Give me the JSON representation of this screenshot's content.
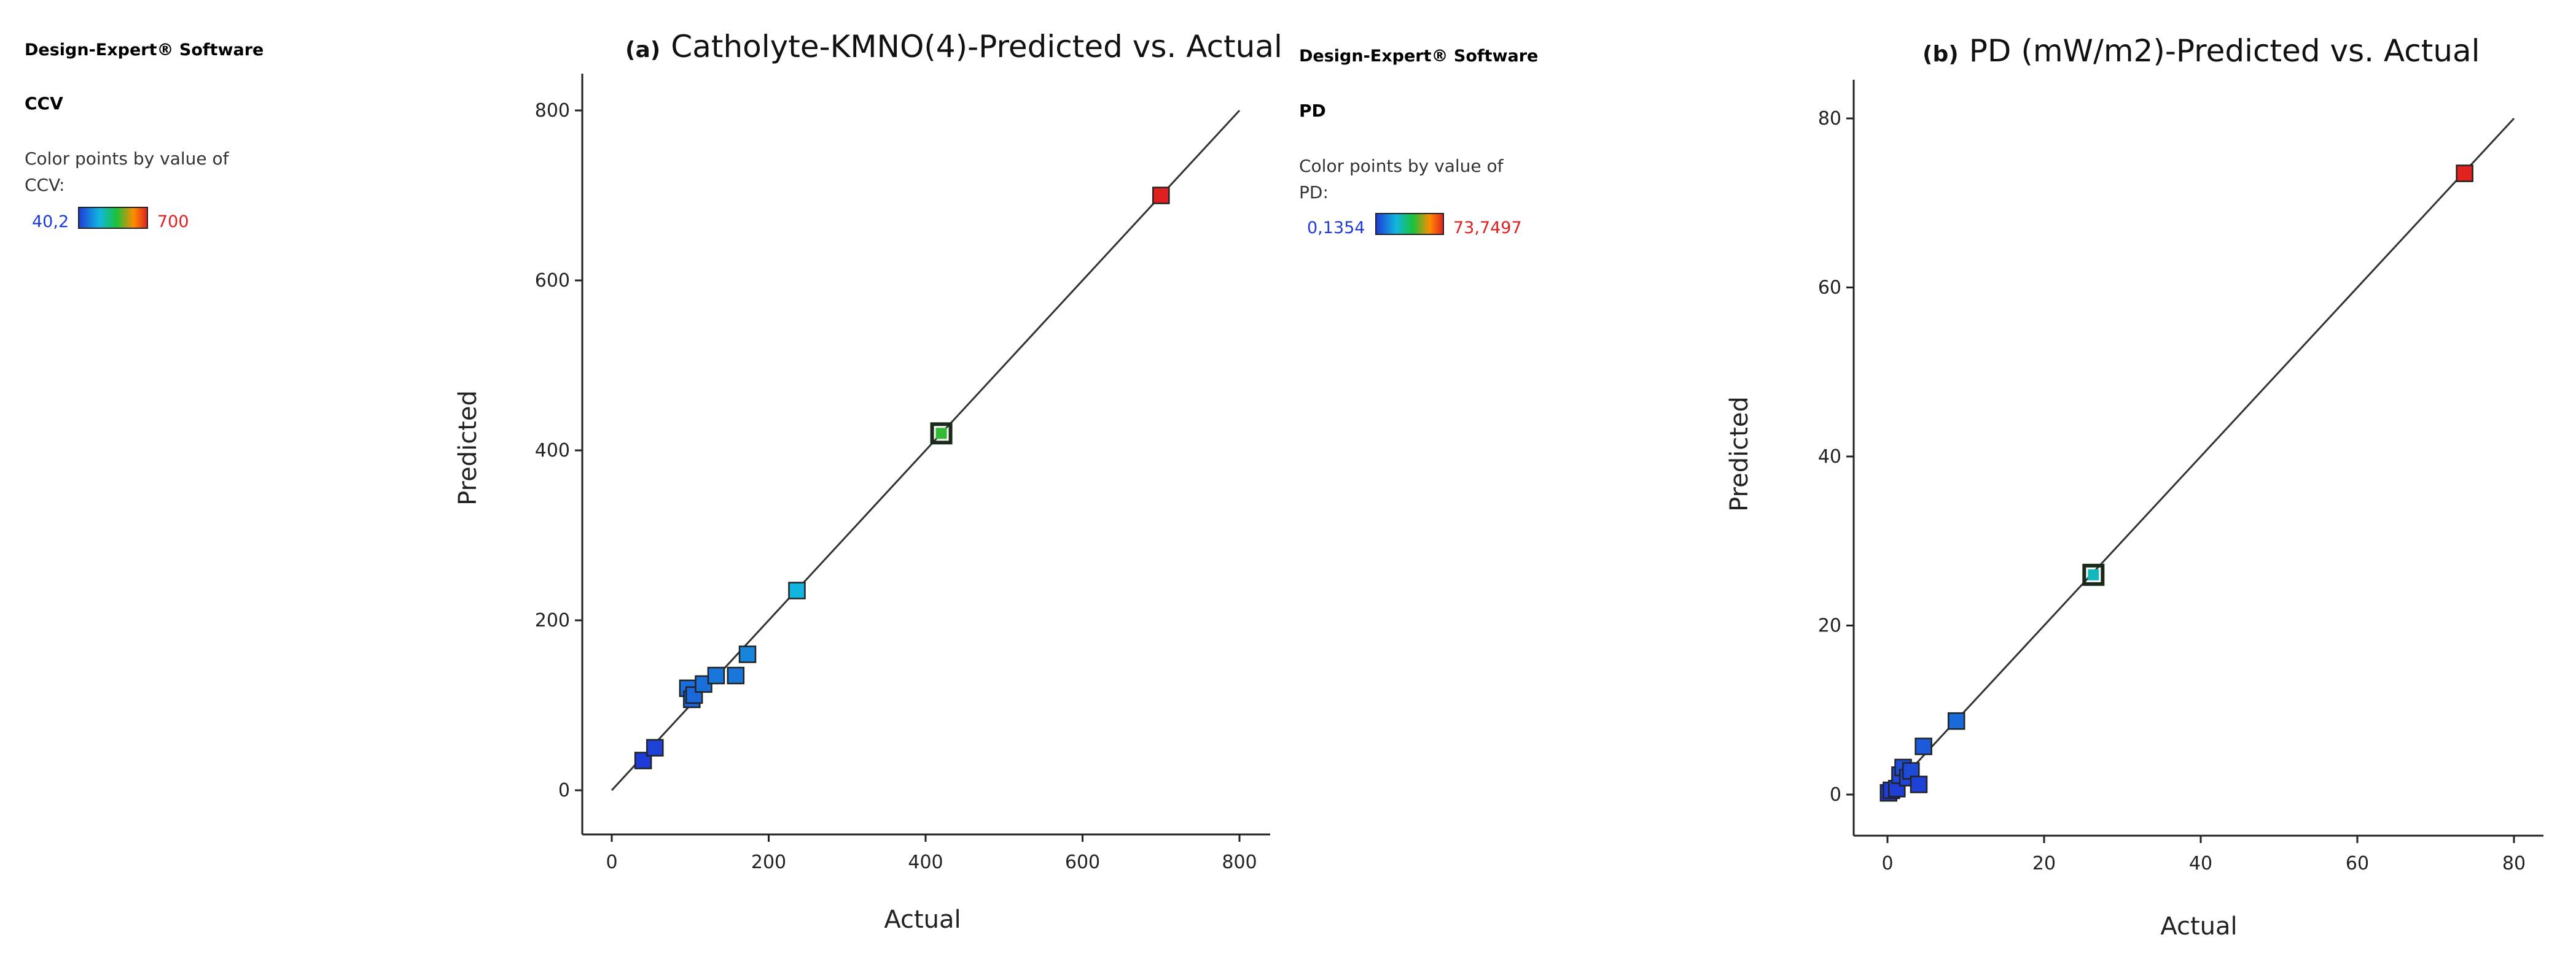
{
  "panels": [
    {
      "software": "Design-Expert® Software",
      "response": "CCV",
      "color_legend_lines": [
        "Color points by value of",
        "CCV:"
      ],
      "color_min_label": "40,2",
      "color_max_label": "700",
      "tag": "(a)",
      "title": "Catholyte-KMNO(4)-Predicted vs. Actual"
    },
    {
      "software": "Design-Expert® Software",
      "response": "PD",
      "color_legend_lines": [
        "Color points by value of",
        "PD:"
      ],
      "color_min_label": "0,1354",
      "color_max_label": "73,7497",
      "tag": "(b)",
      "title": "PD (mW/m2)-Predicted vs. Actual"
    }
  ],
  "colors": {
    "gradient": [
      "#1f3bd6",
      "#12b6e0",
      "#19c23a",
      "#ff8c00",
      "#e02020"
    ],
    "point_border": "#222222",
    "axis": "#222222",
    "fit_line": "#333333"
  },
  "chart_data": [
    {
      "type": "scatter",
      "title": "(a) Catholyte-KMNO(4)-Predicted vs. Actual",
      "xlabel": "Actual",
      "ylabel": "Predicted",
      "xlim": [
        0,
        800
      ],
      "ylim": [
        0,
        800
      ],
      "xticks": [
        0,
        200,
        400,
        600,
        800
      ],
      "yticks": [
        0,
        200,
        400,
        600,
        800
      ],
      "reference_line": "y = x",
      "color_range": [
        40.2,
        700
      ],
      "grid": false,
      "legend": "left",
      "points": [
        {
          "x": 40,
          "y": 35
        },
        {
          "x": 55,
          "y": 50
        },
        {
          "x": 97,
          "y": 120
        },
        {
          "x": 102,
          "y": 107
        },
        {
          "x": 105,
          "y": 112
        },
        {
          "x": 117,
          "y": 125
        },
        {
          "x": 133,
          "y": 135
        },
        {
          "x": 158,
          "y": 135
        },
        {
          "x": 173,
          "y": 160
        },
        {
          "x": 236,
          "y": 235
        },
        {
          "x": 420,
          "y": 420,
          "center": true
        },
        {
          "x": 700,
          "y": 700
        }
      ]
    },
    {
      "type": "scatter",
      "title": "(b) PD (mW/m2)-Predicted vs. Actual",
      "xlabel": "Actual",
      "ylabel": "Predicted",
      "xlim": [
        0,
        80
      ],
      "ylim": [
        0,
        80
      ],
      "xticks": [
        0,
        20,
        40,
        60,
        80
      ],
      "yticks": [
        0,
        20,
        40,
        60,
        80
      ],
      "reference_line": "y = x",
      "color_range": [
        0.1354,
        73.7497
      ],
      "grid": false,
      "legend": "left",
      "points": [
        {
          "x": 0.14,
          "y": 0.2
        },
        {
          "x": 0.5,
          "y": 0.5
        },
        {
          "x": 1.2,
          "y": 0.7
        },
        {
          "x": 1.6,
          "y": 2.3
        },
        {
          "x": 2.0,
          "y": 3.2
        },
        {
          "x": 2.6,
          "y": 2.0
        },
        {
          "x": 3.0,
          "y": 2.8
        },
        {
          "x": 4.0,
          "y": 1.2
        },
        {
          "x": 4.6,
          "y": 5.7
        },
        {
          "x": 8.8,
          "y": 8.7
        },
        {
          "x": 26.3,
          "y": 26.0,
          "center": true
        },
        {
          "x": 73.7,
          "y": 73.5
        }
      ]
    }
  ]
}
